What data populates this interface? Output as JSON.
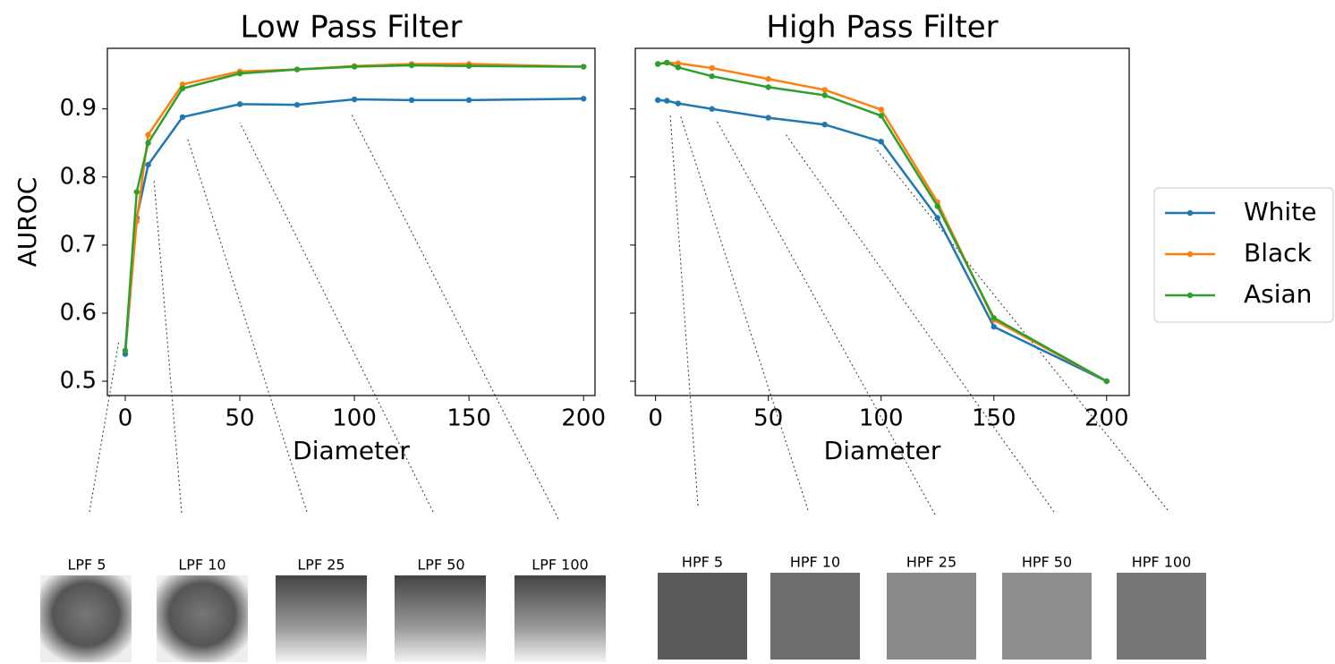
{
  "chart_data": [
    {
      "type": "line",
      "title": "Low Pass Filter",
      "x_label": "Diameter",
      "y_label": "AUROC",
      "x": [
        0,
        5,
        10,
        25,
        50,
        75,
        100,
        125,
        150,
        200
      ],
      "series": [
        {
          "name": "White",
          "color": "#1f77b4",
          "values": [
            0.54,
            0.74,
            0.818,
            0.888,
            0.907,
            0.906,
            0.914,
            0.913,
            0.913,
            0.915
          ]
        },
        {
          "name": "Black",
          "color": "#ff7f0e",
          "values": [
            0.545,
            0.735,
            0.862,
            0.936,
            0.955,
            0.958,
            0.963,
            0.966,
            0.966,
            0.962
          ]
        },
        {
          "name": "Asian",
          "color": "#2ca02c",
          "values": [
            0.545,
            0.778,
            0.85,
            0.93,
            0.952,
            0.958,
            0.962,
            0.964,
            0.963,
            0.962
          ]
        }
      ],
      "xlim": [
        -7.8,
        205
      ],
      "xticks": [
        0,
        50,
        100,
        150,
        200
      ],
      "ylim": [
        0.479,
        0.989
      ],
      "yticks": [
        0.5,
        0.6,
        0.7,
        0.8,
        0.9
      ],
      "legend": "right"
    },
    {
      "type": "line",
      "title": "High Pass Filter",
      "x_label": "Diameter",
      "x": [
        1,
        5,
        10,
        25,
        50,
        75,
        100,
        125,
        150,
        200
      ],
      "series": [
        {
          "color": "#1f77b4",
          "values": [
            0.913,
            0.912,
            0.908,
            0.9,
            0.887,
            0.877,
            0.852,
            0.74,
            0.58,
            0.5
          ]
        },
        {
          "color": "#ff7f0e",
          "values": [
            0.966,
            0.968,
            0.967,
            0.96,
            0.944,
            0.928,
            0.899,
            0.763,
            0.59,
            0.5
          ]
        },
        {
          "color": "#2ca02c",
          "values": [
            0.966,
            0.968,
            0.961,
            0.948,
            0.932,
            0.92,
            0.89,
            0.757,
            0.593,
            0.5
          ]
        }
      ],
      "xlim": [
        -9,
        210
      ],
      "xticks": [
        0,
        50,
        100,
        150,
        200
      ],
      "ylim": [
        0.479,
        0.989
      ],
      "yticks": [
        0.5,
        0.6,
        0.7,
        0.8,
        0.9
      ]
    }
  ],
  "thumbnails": {
    "low": [
      "LPF 5",
      "LPF 10",
      "LPF 25",
      "LPF 50",
      "LPF 100"
    ],
    "high": [
      "HPF 5",
      "HPF 10",
      "HPF 25",
      "HPF 50",
      "HPF 100"
    ]
  }
}
